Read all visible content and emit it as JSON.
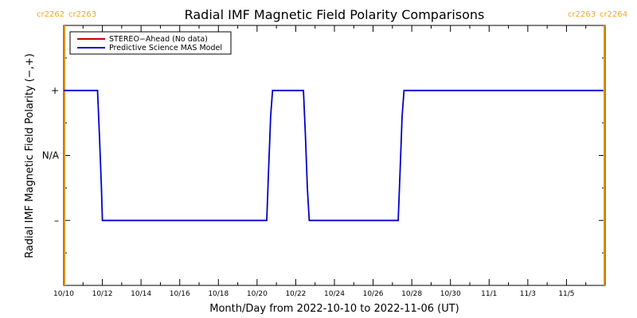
{
  "chart_data": {
    "type": "line",
    "title": "Radial IMF Magnetic Field Polarity Comparisons",
    "xlabel": "Month/Day from 2022-10-10 to 2022-11-06 (UT)",
    "ylabel": "Radial IMF Magnetic Field Polarity (−,+)",
    "x_tick_labels": [
      "10/10",
      "10/12",
      "10/14",
      "10/16",
      "10/18",
      "10/20",
      "10/22",
      "10/24",
      "10/26",
      "10/28",
      "10/30",
      "11/1",
      "11/3",
      "11/5"
    ],
    "x_tick_days": [
      0,
      2,
      4,
      6,
      8,
      10,
      12,
      14,
      16,
      18,
      20,
      22,
      24,
      26
    ],
    "xlim": [
      0,
      28
    ],
    "ylim": [
      -2,
      2
    ],
    "y_ticks": [
      {
        "value": 1,
        "label": "+"
      },
      {
        "value": 0,
        "label": "N/A"
      },
      {
        "value": -1,
        "label": "–"
      }
    ],
    "carrington_markers": [
      {
        "day": 0.05,
        "left_label": "cr2262",
        "right_label": "cr2263"
      },
      {
        "day": 27.95,
        "left_label": "cr2263",
        "right_label": "cr2264"
      }
    ],
    "legend": {
      "position": "top-left",
      "entries": [
        {
          "name": "STEREO−Ahead (No data)",
          "color": "#cc0000"
        },
        {
          "name": "Predictive Science MAS Model",
          "color": "#0000cc"
        }
      ]
    },
    "series": [
      {
        "name": "Predictive Science MAS Model",
        "color": "#0000cc",
        "points": [
          [
            0,
            1
          ],
          [
            1.75,
            1
          ],
          [
            1.85,
            0.3
          ],
          [
            1.95,
            -0.5
          ],
          [
            2.0,
            -1
          ],
          [
            10.5,
            -1
          ],
          [
            10.6,
            -0.2
          ],
          [
            10.7,
            0.6
          ],
          [
            10.8,
            1
          ],
          [
            12.4,
            1
          ],
          [
            12.5,
            0.3
          ],
          [
            12.6,
            -0.5
          ],
          [
            12.7,
            -1
          ],
          [
            17.3,
            -1
          ],
          [
            17.4,
            -0.2
          ],
          [
            17.5,
            0.6
          ],
          [
            17.6,
            1
          ],
          [
            27.9,
            1
          ]
        ]
      }
    ],
    "colors": {
      "axis": "#000000",
      "marker": "#f5a623",
      "series": "#0000cc",
      "stereo": "#cc0000"
    }
  }
}
